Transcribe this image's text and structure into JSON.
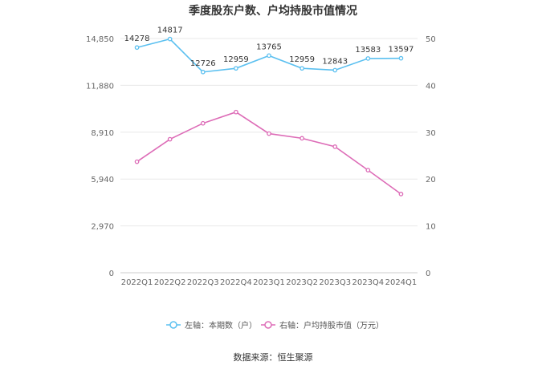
{
  "title": "季度股东户数、户均持股市值情况",
  "source_text": "数据来源：恒生聚源",
  "colors": {
    "left_series": "#5bc0f0",
    "right_series": "#dd6cb7",
    "grid": "#e8e8e8",
    "axis_text": "#666666",
    "label_text": "#333333"
  },
  "chart_data": {
    "type": "line",
    "categories": [
      "2022Q1",
      "2022Q2",
      "2022Q3",
      "2022Q4",
      "2023Q1",
      "2023Q2",
      "2023Q3",
      "2023Q4",
      "2024Q1"
    ],
    "series": [
      {
        "name": "左轴：本期数（户）",
        "axis": "left",
        "values": [
          14278,
          14817,
          12726,
          12959,
          13765,
          12959,
          12843,
          13583,
          13597
        ],
        "data_labels": true
      },
      {
        "name": "右轴：户均持股市值（万元）",
        "axis": "right",
        "values": [
          23.7,
          28.5,
          31.9,
          34.3,
          29.7,
          28.7,
          26.9,
          21.9,
          16.8
        ],
        "data_labels": false
      }
    ],
    "y_left": {
      "ticks": [
        0,
        2970,
        5940,
        8910,
        11880,
        14850
      ],
      "tick_labels": [
        "0",
        "2,970",
        "5,940",
        "8,910",
        "11,880",
        "14,850"
      ],
      "min": 0,
      "max": 14850
    },
    "y_right": {
      "ticks": [
        0,
        10,
        20,
        30,
        40,
        50
      ],
      "tick_labels": [
        "0",
        "10",
        "20",
        "30",
        "40",
        "50"
      ],
      "min": 0,
      "max": 50
    },
    "grid": true,
    "legend_position": "bottom"
  }
}
